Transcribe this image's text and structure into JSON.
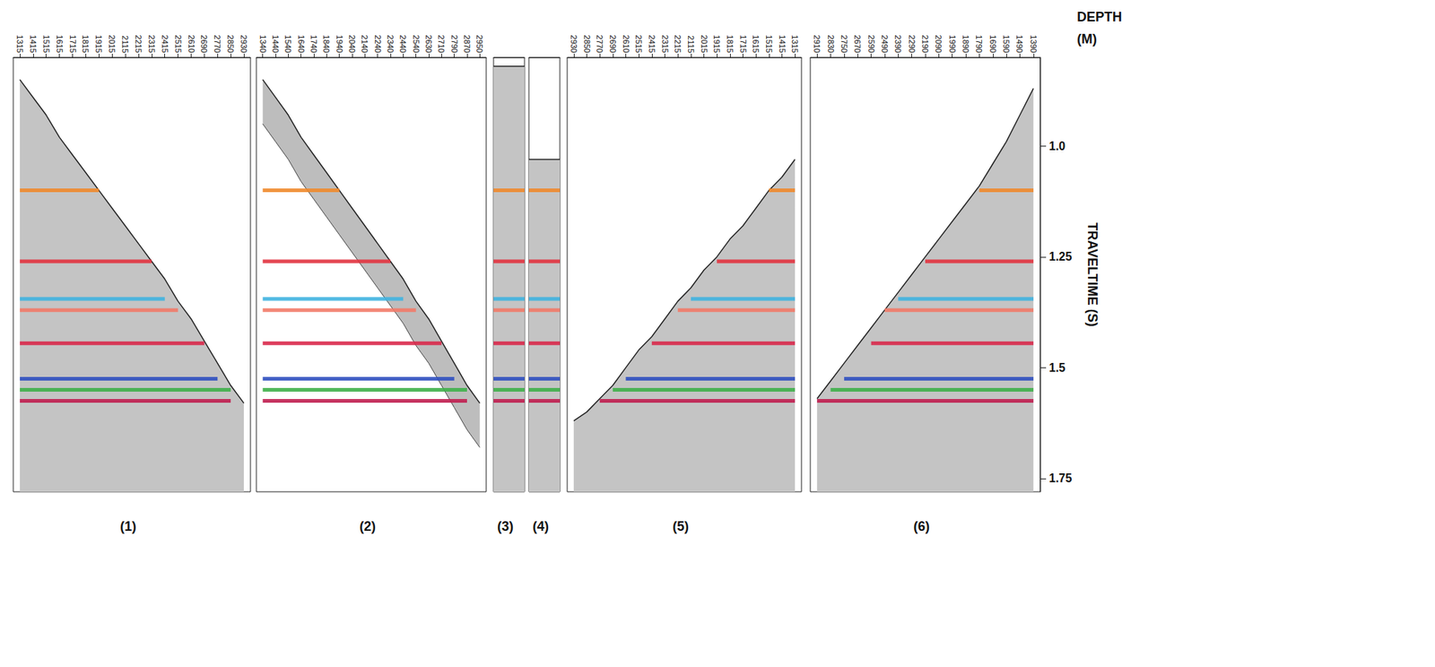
{
  "chart_data": {
    "type": "line",
    "xlabel": "DEPTH (M)",
    "ylabel": "TRAVELTIME (S)",
    "ylim": [
      0.8,
      1.78
    ],
    "yticks": [
      {
        "value": 1,
        "label": "1.0"
      },
      1.25,
      1.5,
      1.75
    ],
    "horizons": [
      {
        "time": 1.1,
        "color": "#f08a2c"
      },
      {
        "time": 1.26,
        "color": "#e23440"
      },
      {
        "time": 1.345,
        "color": "#3fb2e0"
      },
      {
        "time": 1.37,
        "color": "#f27a68"
      },
      {
        "time": 1.445,
        "color": "#d9284a"
      },
      {
        "time": 1.525,
        "color": "#3050c0"
      },
      {
        "time": 1.55,
        "color": "#3fb04a"
      },
      {
        "time": 1.575,
        "color": "#c01e50"
      }
    ],
    "panels": [
      {
        "label": "(1)",
        "categories": [
          1315,
          1415,
          1515,
          1615,
          1715,
          1815,
          1915,
          2015,
          2115,
          2215,
          2315,
          2415,
          2515,
          2610,
          2690,
          2770,
          2850,
          2930
        ],
        "values": [
          0.85,
          0.89,
          0.93,
          0.98,
          1.02,
          1.06,
          1.1,
          1.14,
          1.18,
          1.22,
          1.26,
          1.3,
          1.35,
          1.39,
          1.44,
          1.49,
          1.54,
          1.58
        ]
      },
      {
        "label": "(2)",
        "categories": [
          1340,
          1440,
          1540,
          1640,
          1740,
          1840,
          1940,
          2040,
          2140,
          2240,
          2340,
          2440,
          2540,
          2630,
          2710,
          2790,
          2870,
          2950
        ],
        "values": [
          0.85,
          0.89,
          0.93,
          0.98,
          1.02,
          1.06,
          1.1,
          1.14,
          1.18,
          1.22,
          1.26,
          1.3,
          1.35,
          1.39,
          1.44,
          1.49,
          1.54,
          1.58
        ],
        "window": 0.1
      },
      {
        "label": "(3)",
        "start_time": 0.82
      },
      {
        "label": "(4)",
        "start_time": 1.03
      },
      {
        "label": "(5)",
        "categories": [
          2930,
          2850,
          2770,
          2690,
          2610,
          2515,
          2415,
          2315,
          2215,
          2115,
          2015,
          1915,
          1815,
          1715,
          1615,
          1515,
          1415,
          1315
        ],
        "values": [
          1.62,
          1.6,
          1.57,
          1.54,
          1.5,
          1.46,
          1.43,
          1.39,
          1.35,
          1.32,
          1.28,
          1.25,
          1.21,
          1.18,
          1.14,
          1.1,
          1.07,
          1.03
        ]
      },
      {
        "label": "(6)",
        "categories": [
          2910,
          2830,
          2750,
          2670,
          2590,
          2490,
          2390,
          2290,
          2190,
          2090,
          1990,
          1890,
          1790,
          1690,
          1590,
          1490,
          1390
        ],
        "values": [
          1.57,
          1.53,
          1.49,
          1.45,
          1.41,
          1.37,
          1.33,
          1.29,
          1.25,
          1.21,
          1.17,
          1.13,
          1.09,
          1.04,
          0.99,
          0.93,
          0.87
        ]
      }
    ]
  }
}
